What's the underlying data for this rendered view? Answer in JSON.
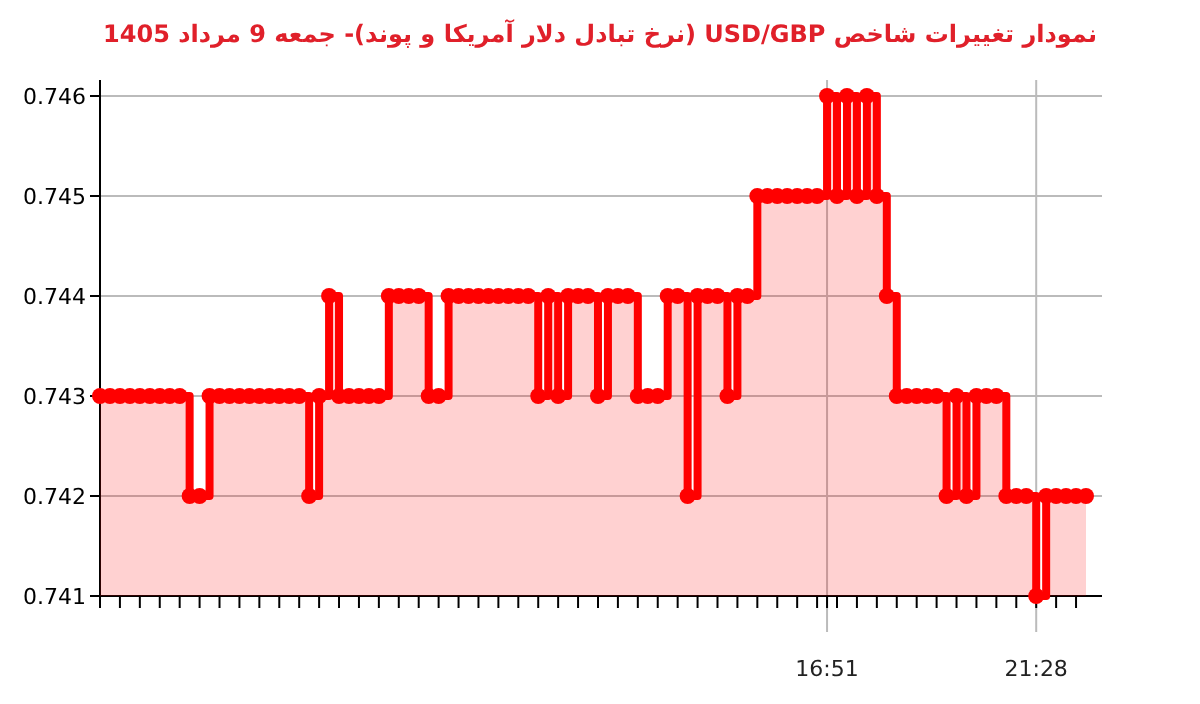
{
  "chart_data": {
    "type": "step",
    "title": "نمودار تغییرات شاخص USD/GBP (نرخ تبادل دلار آمریکا و پوند)- جمعه  9 مرداد 1405",
    "categories": [
      null,
      null,
      null,
      null,
      null,
      null,
      null,
      null,
      null,
      null,
      null,
      null,
      null,
      null,
      null,
      null,
      null,
      null,
      null,
      null,
      null,
      null,
      null,
      null,
      null,
      null,
      null,
      null,
      null,
      null,
      null,
      null,
      null,
      null,
      null,
      null,
      null,
      null,
      null,
      null,
      null,
      null,
      null,
      null,
      null,
      null,
      null,
      null,
      null,
      null,
      null,
      null,
      null,
      null,
      null,
      null,
      null,
      null,
      null,
      null,
      null,
      null,
      null,
      null,
      null,
      null,
      null,
      null,
      null,
      null,
      null,
      null,
      null,
      "16:51",
      null,
      null,
      null,
      null,
      null,
      null,
      null,
      null,
      null,
      null,
      null,
      null,
      null,
      null,
      null,
      null,
      null,
      null,
      null,
      null,
      "21:28",
      null,
      null,
      null,
      null,
      null
    ],
    "series": [
      {
        "color": "#ff0000",
        "values": [
          0.743,
          0.743,
          0.743,
          0.743,
          0.743,
          0.743,
          0.743,
          0.743,
          0.743,
          0.742,
          0.742,
          0.743,
          0.743,
          0.743,
          0.743,
          0.743,
          0.743,
          0.743,
          0.743,
          0.743,
          0.743,
          0.742,
          0.743,
          0.744,
          0.743,
          0.743,
          0.743,
          0.743,
          0.743,
          0.744,
          0.744,
          0.744,
          0.744,
          0.743,
          0.743,
          0.744,
          0.744,
          0.744,
          0.744,
          0.744,
          0.744,
          0.744,
          0.744,
          0.744,
          0.743,
          0.744,
          0.743,
          0.744,
          0.744,
          0.744,
          0.743,
          0.744,
          0.744,
          0.744,
          0.743,
          0.743,
          0.743,
          0.744,
          0.744,
          0.742,
          0.744,
          0.744,
          0.744,
          0.743,
          0.744,
          0.744,
          0.745,
          0.745,
          0.745,
          0.745,
          0.745,
          0.745,
          0.745,
          0.746,
          0.745,
          0.746,
          0.745,
          0.746,
          0.745,
          0.744,
          0.743,
          0.743,
          0.743,
          0.743,
          0.743,
          0.742,
          0.743,
          0.742,
          0.743,
          0.743,
          0.743,
          0.742,
          0.742,
          0.742,
          0.741,
          0.742,
          0.742,
          0.742,
          0.742,
          0.742
        ]
      }
    ],
    "ylim": [
      0.741,
      0.746
    ],
    "yticks": [
      0.741,
      0.742,
      0.743,
      0.744,
      0.745,
      0.746
    ],
    "grid": true,
    "marker": "circle",
    "line_style": "solid"
  }
}
